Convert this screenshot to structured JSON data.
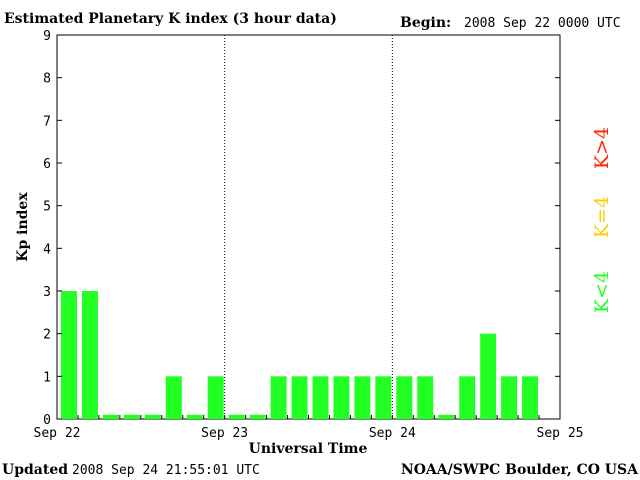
{
  "header": {
    "title": "Estimated Planetary K index (3 hour data)",
    "begin_label": "Begin:",
    "begin_value": "2008 Sep 22 0000 UTC"
  },
  "footer": {
    "updated_label": "Updated",
    "updated_value": "2008 Sep 24 21:55:01 UTC",
    "source": "NOAA/SWPC Boulder, CO USA"
  },
  "legend": {
    "high": "K>4",
    "mid": "K=4",
    "low": "K<4"
  },
  "colors": {
    "low": "#22ff22",
    "mid": "#ffcc00",
    "high": "#ff2200"
  },
  "chart_data": {
    "type": "bar",
    "title": "Estimated Planetary K index (3 hour data)",
    "xlabel": "Universal Time",
    "ylabel": "Kp index",
    "ylim": [
      0,
      9
    ],
    "y_ticks": [
      "0",
      "1",
      "2",
      "3",
      "4",
      "5",
      "6",
      "7",
      "8",
      "9"
    ],
    "x_ticks": [
      "Sep 22",
      "Sep 23",
      "Sep 24",
      "Sep 25"
    ],
    "bins_per_day": 8,
    "days": 3,
    "grid": "dotted vertical lines at day boundaries",
    "values": [
      3,
      3,
      0.1,
      0.1,
      0.1,
      1,
      0.1,
      1,
      0.1,
      0.1,
      1,
      1,
      1,
      1,
      1,
      1,
      1,
      1,
      0.1,
      1,
      2,
      1,
      1
    ]
  }
}
